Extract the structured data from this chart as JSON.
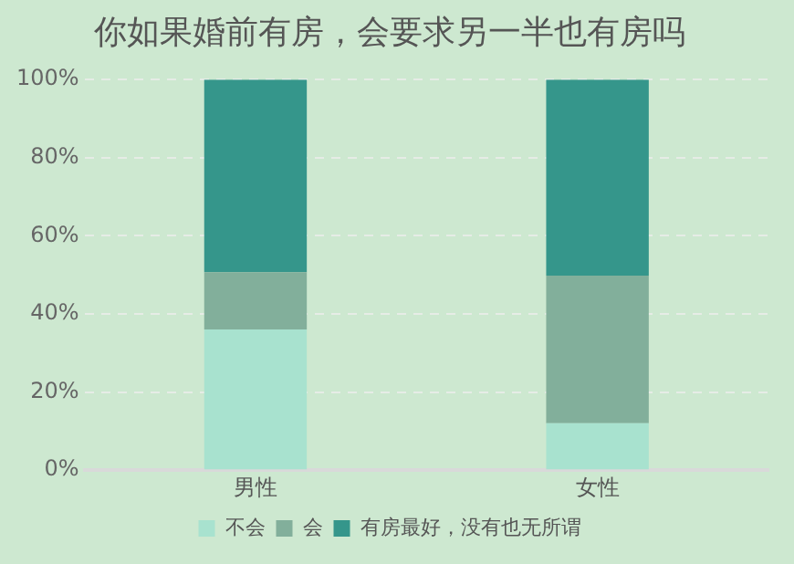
{
  "chart_data": {
    "type": "bar",
    "title": "你如果婚前有房，会要求另一半也有房吗",
    "categories": [
      "男性",
      "女性"
    ],
    "stacked": true,
    "series": [
      {
        "name": "不会",
        "color": "#a8e2cf",
        "values": [
          36,
          12
        ]
      },
      {
        "name": "会",
        "color": "#82af9b",
        "values": [
          14.7,
          37.8
        ]
      },
      {
        "name": "有房最好，没有也无所谓",
        "color": "#35968b",
        "values": [
          49.3,
          50.2
        ]
      }
    ],
    "ylim": [
      0,
      100
    ],
    "yticks": [
      {
        "value": 0,
        "label": "0%"
      },
      {
        "value": 20,
        "label": "20%"
      },
      {
        "value": 40,
        "label": "40%"
      },
      {
        "value": 60,
        "label": "60%"
      },
      {
        "value": 80,
        "label": "80%"
      },
      {
        "value": 100,
        "label": "100%"
      }
    ],
    "grid": "y",
    "legend": "bottom"
  }
}
